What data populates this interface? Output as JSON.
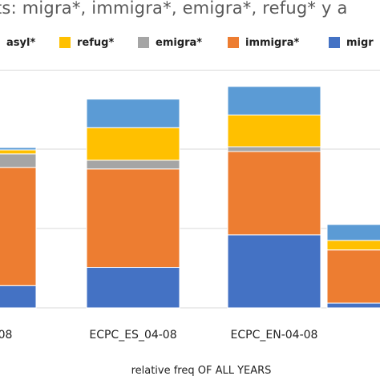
{
  "chart_data": {
    "type": "bar",
    "stacked": true,
    "title": "ts: migra*, immigra*, emigra*, refug* y a",
    "xlabel": "relative freq OF ALL YEARS",
    "ylabel": "",
    "grid": true,
    "legend_position": "top",
    "categories": [
      "-08",
      "ECPC_ES_04-08",
      "ECPC_EN-04-08",
      ""
    ],
    "series": [
      {
        "name": "migr",
        "color": "#4472C4",
        "values": [
          28,
          51,
          92,
          6
        ]
      },
      {
        "name": "immigra*",
        "color": "#ED7D31",
        "values": [
          149,
          124,
          105,
          67
        ]
      },
      {
        "name": "emigra*",
        "color": "#A5A5A5",
        "values": [
          17,
          11,
          6,
          0
        ]
      },
      {
        "name": "refug*",
        "color": "#FFC000",
        "values": [
          5,
          41,
          40,
          12
        ]
      },
      {
        "name": "asyl*",
        "color": "#5B9BD5",
        "values": [
          3,
          36,
          36,
          20
        ]
      }
    ],
    "ylim": [
      0,
      300
    ]
  },
  "legend": [
    {
      "label": "asyl*",
      "color": "#5B9BD5"
    },
    {
      "label": "refug*",
      "color": "#FFC000"
    },
    {
      "label": "emigra*",
      "color": "#A5A5A5"
    },
    {
      "label": "immigra*",
      "color": "#ED7D31"
    },
    {
      "label": "migr",
      "color": "#4472C4"
    }
  ]
}
